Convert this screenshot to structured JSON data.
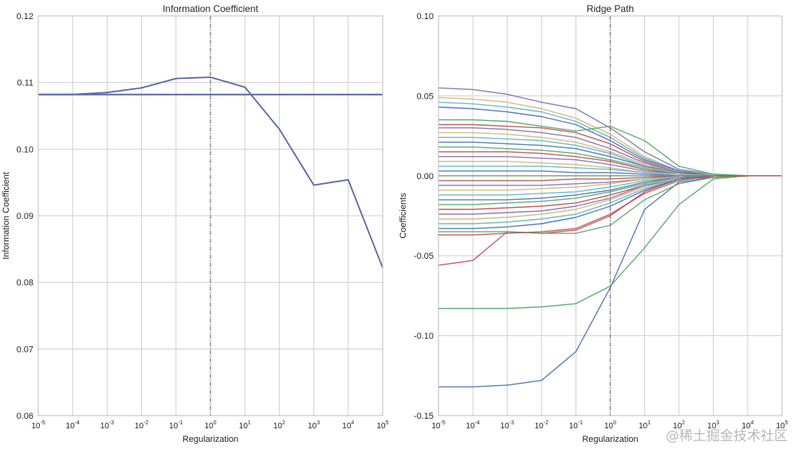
{
  "chart_data": [
    {
      "type": "line",
      "title": "Information Coefficient",
      "xlabel": "Regularization",
      "ylabel": "Information Coefficient",
      "x_scale": "log",
      "x": [
        1e-05,
        0.0001,
        0.001,
        0.01,
        0.1,
        1.0,
        10.0,
        100.0,
        1000.0,
        10000.0,
        100000.0
      ],
      "xlim": [
        1e-05,
        100000.0
      ],
      "x_tick_exponents": [
        "-5",
        "-4",
        "-3",
        "-2",
        "-1",
        "0",
        "1",
        "2",
        "3",
        "4",
        "5"
      ],
      "ylim": [
        0.06,
        0.12
      ],
      "y_ticks": [
        "0.06",
        "0.07",
        "0.08",
        "0.09",
        "0.10",
        "0.11",
        "0.12"
      ],
      "grid": true,
      "vline_x": 1,
      "hline_y": 0.1082,
      "series": [
        {
          "values": [
            0.1082,
            0.1082,
            0.1085,
            0.1092,
            0.1106,
            0.1108,
            0.1093,
            0.103,
            0.0946,
            0.0954,
            0.0822
          ]
        }
      ]
    },
    {
      "type": "line",
      "title": "Ridge Path",
      "xlabel": "Regularization",
      "ylabel": "Coefficients",
      "x_scale": "log",
      "x": [
        1e-05,
        0.0001,
        0.001,
        0.01,
        0.1,
        1.0,
        10.0,
        100.0,
        1000.0,
        10000.0,
        100000.0
      ],
      "xlim": [
        1e-05,
        100000.0
      ],
      "x_tick_exponents": [
        "-5",
        "-4",
        "-3",
        "-2",
        "-1",
        "0",
        "1",
        "2",
        "3",
        "4",
        "5"
      ],
      "ylim": [
        -0.15,
        0.1
      ],
      "y_ticks": [
        "-0.15",
        "-0.10",
        "-0.05",
        "0.00",
        "0.05",
        "0.10"
      ],
      "grid": true,
      "vline_x": 1,
      "series": [
        {
          "values": [
            -0.132,
            -0.132,
            -0.131,
            -0.128,
            -0.11,
            -0.07,
            -0.021,
            -0.004,
            -0.001,
            0.0,
            0.0
          ]
        },
        {
          "values": [
            -0.083,
            -0.083,
            -0.083,
            -0.082,
            -0.08,
            -0.069,
            -0.045,
            -0.018,
            -0.002,
            0.0,
            0.0
          ]
        },
        {
          "values": [
            -0.056,
            -0.053,
            -0.035,
            -0.036,
            -0.034,
            -0.025,
            -0.01,
            -0.002,
            -0.001,
            0.0,
            0.0
          ]
        },
        {
          "values": [
            0.055,
            0.054,
            0.051,
            0.046,
            0.042,
            0.03,
            0.015,
            0.004,
            0.001,
            0.0,
            0.0
          ]
        },
        {
          "values": [
            0.049,
            0.048,
            0.046,
            0.042,
            0.036,
            0.026,
            0.012,
            0.003,
            0.001,
            0.0,
            0.0
          ]
        },
        {
          "values": [
            0.046,
            0.045,
            0.043,
            0.04,
            0.034,
            0.024,
            0.011,
            0.003,
            0.001,
            0.0,
            0.0
          ]
        },
        {
          "values": [
            0.043,
            0.042,
            0.04,
            0.037,
            0.032,
            0.022,
            0.01,
            0.003,
            0.0,
            0.0,
            0.0
          ]
        },
        {
          "values": [
            0.035,
            0.035,
            0.034,
            0.031,
            0.028,
            0.031,
            0.022,
            0.006,
            0.001,
            0.0,
            0.0
          ]
        },
        {
          "values": [
            0.032,
            0.032,
            0.031,
            0.03,
            0.027,
            0.02,
            0.009,
            0.002,
            0.0,
            0.0,
            0.0
          ]
        },
        {
          "values": [
            0.03,
            0.03,
            0.029,
            0.027,
            0.024,
            0.017,
            0.008,
            0.002,
            0.0,
            0.0,
            0.0
          ]
        },
        {
          "values": [
            0.027,
            0.027,
            0.026,
            0.024,
            0.021,
            0.015,
            0.007,
            0.002,
            0.0,
            0.0,
            0.0
          ]
        },
        {
          "values": [
            0.024,
            0.024,
            0.023,
            0.022,
            0.019,
            0.014,
            0.006,
            0.002,
            0.0,
            0.0,
            0.0
          ]
        },
        {
          "values": [
            0.021,
            0.021,
            0.02,
            0.019,
            0.017,
            0.012,
            0.006,
            0.002,
            0.0,
            0.0,
            0.0
          ]
        },
        {
          "values": [
            0.018,
            0.018,
            0.017,
            0.016,
            0.014,
            0.01,
            0.005,
            0.001,
            0.0,
            0.0,
            0.0
          ]
        },
        {
          "values": [
            0.015,
            0.015,
            0.015,
            0.014,
            0.012,
            0.009,
            0.004,
            0.001,
            0.0,
            0.0,
            0.0
          ]
        },
        {
          "values": [
            0.012,
            0.012,
            0.012,
            0.011,
            0.01,
            0.007,
            0.003,
            0.001,
            0.0,
            0.0,
            0.0
          ]
        },
        {
          "values": [
            0.009,
            0.009,
            0.009,
            0.008,
            0.007,
            0.005,
            0.002,
            0.001,
            0.0,
            0.0,
            0.0
          ]
        },
        {
          "values": [
            0.006,
            0.006,
            0.006,
            0.006,
            0.005,
            0.004,
            0.002,
            0.0,
            0.0,
            0.0,
            0.0
          ]
        },
        {
          "values": [
            0.003,
            0.003,
            0.003,
            0.003,
            0.002,
            0.002,
            0.001,
            0.0,
            0.0,
            0.0,
            0.0
          ]
        },
        {
          "values": [
            0.0,
            0.0,
            0.0,
            0.0,
            0.0,
            0.0,
            0.0,
            0.0,
            0.0,
            0.0,
            0.0
          ]
        },
        {
          "values": [
            -0.003,
            -0.003,
            -0.003,
            -0.003,
            -0.002,
            -0.002,
            -0.001,
            0.0,
            0.0,
            0.0,
            0.0
          ]
        },
        {
          "values": [
            -0.006,
            -0.006,
            -0.006,
            -0.006,
            -0.005,
            -0.004,
            -0.002,
            0.0,
            0.0,
            0.0,
            0.0
          ]
        },
        {
          "values": [
            -0.009,
            -0.009,
            -0.009,
            -0.008,
            -0.007,
            -0.005,
            -0.002,
            -0.001,
            0.0,
            0.0,
            0.0
          ]
        },
        {
          "values": [
            -0.012,
            -0.012,
            -0.012,
            -0.011,
            -0.01,
            -0.007,
            -0.003,
            -0.001,
            0.0,
            0.0,
            0.0
          ]
        },
        {
          "values": [
            -0.015,
            -0.015,
            -0.015,
            -0.014,
            -0.012,
            -0.009,
            -0.004,
            -0.001,
            0.0,
            0.0,
            0.0
          ]
        },
        {
          "values": [
            -0.018,
            -0.018,
            -0.017,
            -0.016,
            -0.014,
            -0.01,
            -0.005,
            -0.001,
            0.0,
            0.0,
            0.0
          ]
        },
        {
          "values": [
            -0.021,
            -0.021,
            -0.02,
            -0.019,
            -0.017,
            -0.012,
            -0.006,
            -0.002,
            0.0,
            0.0,
            0.0
          ]
        },
        {
          "values": [
            -0.024,
            -0.024,
            -0.023,
            -0.022,
            -0.019,
            -0.014,
            -0.006,
            -0.002,
            0.0,
            0.0,
            0.0
          ]
        },
        {
          "values": [
            -0.027,
            -0.027,
            -0.026,
            -0.024,
            -0.021,
            -0.015,
            -0.007,
            -0.002,
            0.0,
            0.0,
            0.0
          ]
        },
        {
          "values": [
            -0.03,
            -0.03,
            -0.029,
            -0.027,
            -0.024,
            -0.017,
            -0.008,
            -0.002,
            0.0,
            0.0,
            0.0
          ]
        },
        {
          "values": [
            -0.033,
            -0.033,
            -0.032,
            -0.03,
            -0.026,
            -0.019,
            -0.009,
            -0.002,
            0.0,
            0.0,
            0.0
          ]
        },
        {
          "values": [
            -0.035,
            -0.035,
            -0.035,
            -0.036,
            -0.036,
            -0.031,
            -0.015,
            -0.005,
            -0.001,
            0.0,
            0.0
          ]
        },
        {
          "values": [
            -0.037,
            -0.037,
            -0.036,
            -0.035,
            -0.033,
            -0.024,
            -0.011,
            -0.003,
            0.0,
            0.0,
            0.0
          ]
        }
      ]
    }
  ],
  "palette": [
    "#4c72b0",
    "#55a868",
    "#c44e52",
    "#8172b2",
    "#ccb974",
    "#64b5cd"
  ],
  "ic_line_color": "#5a67a8",
  "watermark": "@稀土掘金技术社区"
}
